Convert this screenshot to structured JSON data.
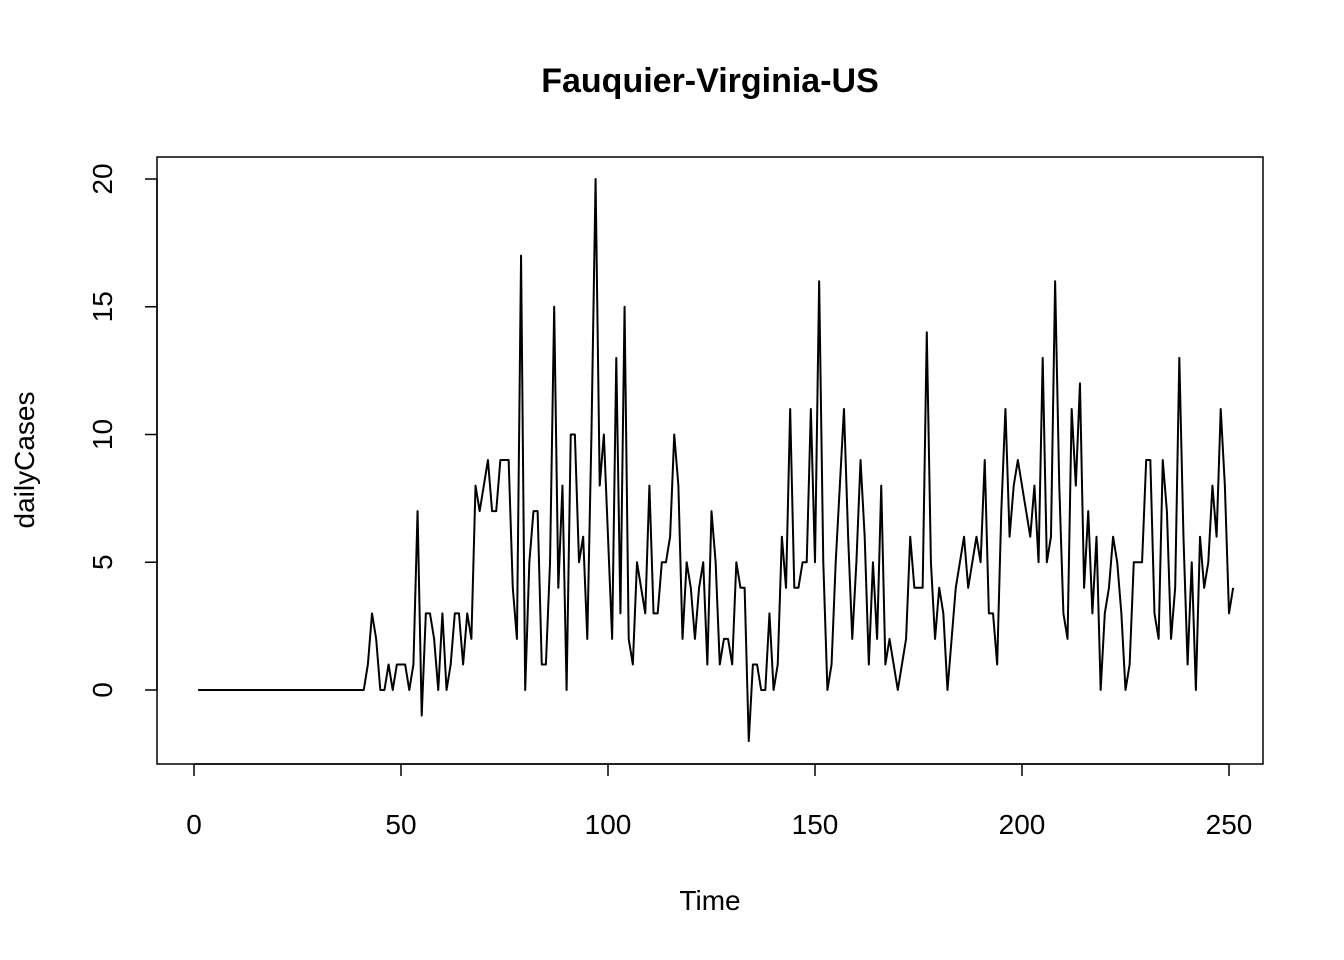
{
  "chart_data": {
    "type": "line",
    "title": "Fauquier-Virginia-US",
    "xlabel": "Time",
    "ylabel": "dailyCases",
    "xlim": [
      1,
      248
    ],
    "ylim": [
      -2,
      20
    ],
    "x_ticks": [
      0,
      50,
      100,
      150,
      200,
      250
    ],
    "y_ticks": [
      0,
      5,
      10,
      15,
      20
    ],
    "x_tick_labels": [
      "0",
      "50",
      "100",
      "150",
      "200",
      "250"
    ],
    "y_tick_labels": [
      "0",
      "5",
      "10",
      "15",
      "20"
    ],
    "grid": false,
    "line_color": "#000000",
    "series": [
      {
        "x_start": 1,
        "values": [
          0,
          0,
          0,
          0,
          0,
          0,
          0,
          0,
          0,
          0,
          0,
          0,
          0,
          0,
          0,
          0,
          0,
          0,
          0,
          0,
          0,
          0,
          0,
          0,
          0,
          0,
          0,
          0,
          0,
          0,
          0,
          0,
          0,
          0,
          0,
          0,
          0,
          0,
          0,
          0,
          0,
          1,
          3,
          2,
          0,
          0,
          1,
          0,
          1,
          1,
          1,
          0,
          1,
          7,
          -1,
          3,
          3,
          2,
          0,
          3,
          0,
          1,
          3,
          3,
          1,
          3,
          2,
          8,
          7,
          8,
          9,
          7,
          7,
          9,
          9,
          9,
          4,
          2,
          17,
          0,
          5,
          7,
          7,
          1,
          1,
          5,
          15,
          4,
          8,
          0,
          10,
          10,
          5,
          6,
          2,
          10,
          20,
          8,
          10,
          6,
          2,
          13,
          3,
          15,
          2,
          1,
          5,
          4,
          3,
          8,
          3,
          3,
          5,
          5,
          6,
          10,
          8,
          2,
          5,
          4,
          2,
          4,
          5,
          1,
          7,
          5,
          1,
          2,
          2,
          1,
          5,
          4,
          4,
          -2,
          1,
          1,
          0,
          0,
          3,
          0,
          1,
          6,
          4,
          11,
          4,
          4,
          5,
          5,
          11,
          5,
          16,
          5,
          0,
          1,
          5,
          8,
          11,
          6,
          2,
          5,
          9,
          6,
          1,
          5,
          2,
          8,
          1,
          2,
          1,
          0,
          1,
          2,
          6,
          4,
          4,
          4,
          14,
          5,
          2,
          4,
          3,
          0,
          2,
          4,
          5,
          6,
          4,
          5,
          6,
          5,
          9,
          3,
          3,
          1,
          7,
          11,
          6,
          8,
          9,
          8,
          7,
          6,
          8,
          5,
          13,
          5,
          6,
          16,
          8,
          3,
          2,
          11,
          8,
          12,
          4,
          7,
          3,
          6,
          0,
          3,
          4,
          6,
          5,
          3,
          0,
          1,
          5,
          5,
          5,
          9,
          9,
          3,
          2,
          9,
          7,
          2,
          4,
          13,
          6,
          1,
          5,
          0,
          6,
          4,
          5,
          8,
          6,
          11,
          8,
          3,
          4
        ]
      }
    ]
  }
}
